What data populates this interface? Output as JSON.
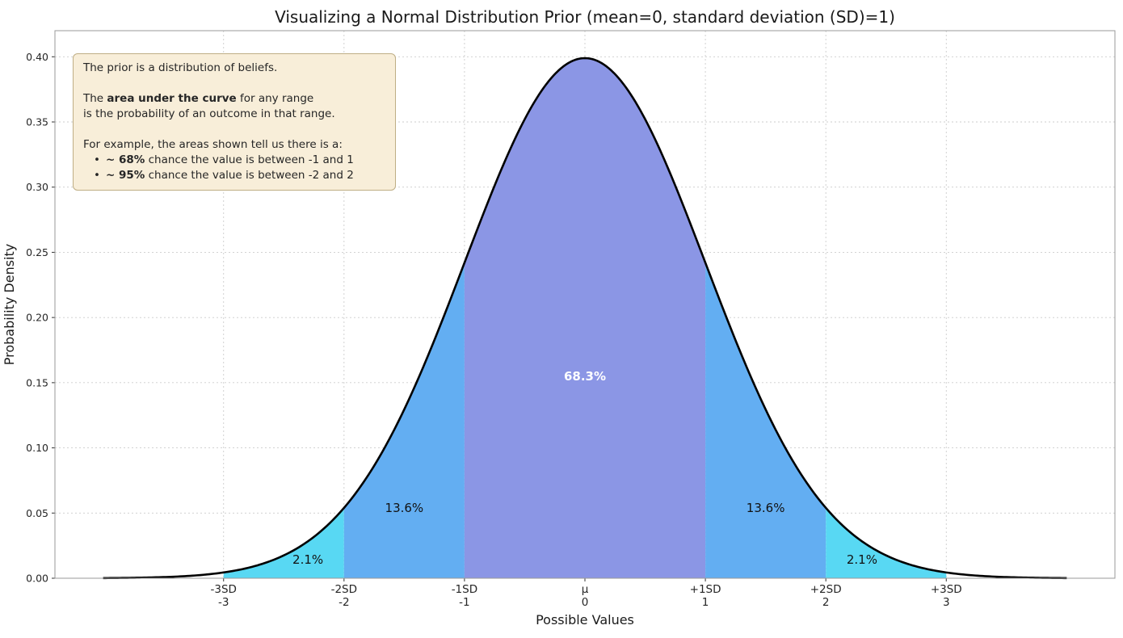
{
  "annotation": {
    "p1": "The prior is a distribution of beliefs.",
    "p2_pre": "The ",
    "p2_bold": "area under the curve",
    "p2_post": " for any range",
    "p3": "is the probability of an outcome in that range.",
    "p4": "For example, the areas shown tell us there is a:",
    "bullet_glyph": "•",
    "b1_bold": "~ 68%",
    "b1_text": " chance the value is between -1 and 1",
    "b2_bold": "~ 95%",
    "b2_text": " chance the value is between -2 and 2"
  },
  "chart_data": {
    "type": "area",
    "title": "Visualizing a Normal Distribution Prior (mean=0, standard deviation (SD)=1)",
    "xlabel": "Possible Values",
    "ylabel": "Probability Density",
    "distribution": {
      "name": "normal",
      "mean": 0,
      "sd": 1,
      "peak_density": 0.3989
    },
    "curve": {
      "x_start": -4,
      "x_end": 4,
      "color": "#000000",
      "width": 2.6
    },
    "axes": {
      "xlim": [
        -4.4,
        4.4
      ],
      "ylim": [
        0,
        0.42
      ],
      "grid": "dashed",
      "grid_color": "#cccccc",
      "border_color": "#999999"
    },
    "y_ticks": [
      {
        "value": 0,
        "label": "0.00"
      },
      {
        "value": 0.05,
        "label": "0.05"
      },
      {
        "value": 0.1,
        "label": "0.10"
      },
      {
        "value": 0.15,
        "label": "0.15"
      },
      {
        "value": 0.2,
        "label": "0.20"
      },
      {
        "value": 0.25,
        "label": "0.25"
      },
      {
        "value": 0.3,
        "label": "0.30"
      },
      {
        "value": 0.35,
        "label": "0.35"
      },
      {
        "value": 0.4,
        "label": "0.40"
      }
    ],
    "x_ticks": [
      {
        "value": -3,
        "sd_label": "-3SD",
        "value_label": "-3"
      },
      {
        "value": -2,
        "sd_label": "-2SD",
        "value_label": "-2"
      },
      {
        "value": -1,
        "sd_label": "-1SD",
        "value_label": "-1"
      },
      {
        "value": 0,
        "sd_label": "μ",
        "value_label": "0"
      },
      {
        "value": 1,
        "sd_label": "+1SD",
        "value_label": "1"
      },
      {
        "value": 2,
        "sd_label": "+2SD",
        "value_label": "2"
      },
      {
        "value": 3,
        "sd_label": "+3SD",
        "value_label": "3"
      }
    ],
    "regions": [
      {
        "from_sd": -3,
        "to_sd": -2,
        "fill": "#58d8f3",
        "probability_label": "2.1%",
        "label_x": -2.3,
        "label_y": 0.0142,
        "label_color": "#111111",
        "label_bold": false
      },
      {
        "from_sd": -2,
        "to_sd": -1,
        "fill": "#63aef2",
        "probability_label": "13.6%",
        "label_x": -1.5,
        "label_y": 0.054,
        "label_color": "#111111",
        "label_bold": false
      },
      {
        "from_sd": -1,
        "to_sd": 1,
        "fill": "#8b96e5",
        "probability_label": "68.3%",
        "label_x": 0,
        "label_y": 0.155,
        "label_color": "#ffffff",
        "label_bold": true
      },
      {
        "from_sd": 1,
        "to_sd": 2,
        "fill": "#63aef2",
        "probability_label": "13.6%",
        "label_x": 1.5,
        "label_y": 0.054,
        "label_color": "#111111",
        "label_bold": false
      },
      {
        "from_sd": 2,
        "to_sd": 3,
        "fill": "#58d8f3",
        "probability_label": "2.1%",
        "label_x": 2.3,
        "label_y": 0.0142,
        "label_color": "#111111",
        "label_bold": false
      }
    ]
  }
}
